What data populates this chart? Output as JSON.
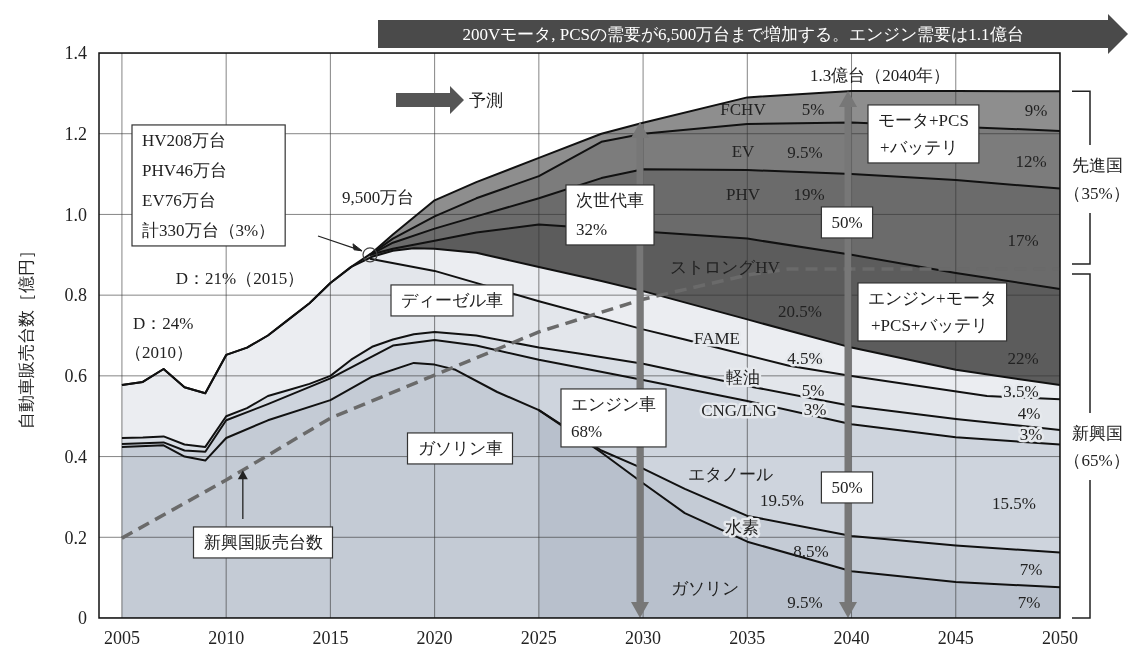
{
  "chart_data": {
    "type": "area",
    "ylabel": "自動車販売台数［億円］",
    "xlim": [
      2003.9,
      2050
    ],
    "xticks": [
      2005,
      2010,
      2015,
      2020,
      2025,
      2030,
      2035,
      2040,
      2045,
      2050
    ],
    "ylim": [
      0,
      1.4
    ],
    "yticks": [
      0,
      0.2,
      0.4,
      0.6,
      0.8,
      {
        "value": 1,
        "label": "1.0"
      },
      1.2,
      1.4
    ],
    "grid": true,
    "series": [
      {
        "color": "#8e8e8e",
        "x": [
          2005,
          2006,
          2007,
          2008,
          2009,
          2010,
          2011,
          2012,
          2013,
          2014,
          2015,
          2016,
          2017,
          2018,
          2020,
          2022,
          2025,
          2028,
          2030,
          2035,
          2040,
          2045,
          2050
        ],
        "values": [
          0.577,
          0.585,
          0.617,
          0.572,
          0.557,
          0.652,
          0.67,
          0.7,
          0.74,
          0.78,
          0.83,
          0.87,
          0.905,
          0.95,
          1.035,
          1.08,
          1.14,
          1.2,
          1.227,
          1.29,
          1.306,
          1.306,
          1.305
        ]
      },
      {
        "color": "#7c7c7c",
        "x": [
          2016.9,
          2018,
          2020,
          2022,
          2025,
          2028,
          2030,
          2035,
          2040,
          2045,
          2050
        ],
        "values": [
          0.9,
          0.94,
          0.995,
          1.04,
          1.095,
          1.18,
          1.2,
          1.224,
          1.228,
          null,
          1.207
        ]
      },
      {
        "color": "#6b6b6b",
        "x": [
          2016.9,
          2018,
          2020,
          2022,
          2025,
          2028,
          2030,
          2035,
          2040,
          2045,
          2050
        ],
        "values": [
          0.9,
          0.93,
          0.965,
          0.995,
          1.04,
          1.09,
          1.112,
          1.11,
          1.1,
          1.085,
          1.064
        ]
      },
      {
        "color": "#5c5c5c",
        "x": [
          2016.9,
          2018,
          2020,
          2022,
          2025,
          2028,
          2030,
          2035,
          2040,
          2045,
          2050
        ],
        "values": [
          0.9,
          0.915,
          0.935,
          0.955,
          0.975,
          null,
          null,
          0.94,
          0.9,
          0.855,
          0.815
        ]
      },
      {
        "color": "#ebedf1",
        "x": [
          2005,
          2006,
          2007,
          2008,
          2009,
          2010,
          2011,
          2012,
          2013,
          2014,
          2015,
          2016,
          2017,
          2018,
          2019,
          2020,
          2022,
          2025,
          2028,
          2030,
          2035,
          2040,
          2045,
          2050
        ],
        "values": [
          0.577,
          0.585,
          0.617,
          0.572,
          0.557,
          0.652,
          0.67,
          0.7,
          0.74,
          0.78,
          0.83,
          0.87,
          0.895,
          0.91,
          0.916,
          0.915,
          0.905,
          0.87,
          0.835,
          0.81,
          0.74,
          0.67,
          0.615,
          0.577
        ]
      },
      {
        "color": "#e3e6eb",
        "x": [
          2016.9,
          2020,
          2025,
          2030,
          2032,
          2037,
          2040,
          2046.5,
          2050
        ],
        "values": [
          0.89,
          0.86,
          0.785,
          0.715,
          0.69,
          0.625,
          0.6,
          0.55,
          0.542
        ]
      },
      {
        "color": "#d9dee5",
        "x": [
          2005,
          2006,
          2007,
          2008,
          2009,
          2010,
          2011,
          2012,
          2013,
          2014,
          2015,
          2016,
          2017,
          2018,
          2019,
          2020,
          2022,
          2025,
          2027,
          2030,
          2035,
          2040,
          2045,
          2050
        ],
        "values": [
          0.446,
          0.447,
          0.45,
          0.43,
          0.424,
          0.5,
          0.52,
          0.55,
          0.565,
          0.58,
          0.6,
          0.64,
          0.672,
          0.69,
          0.703,
          0.709,
          0.7,
          0.67,
          0.655,
          0.63,
          0.575,
          0.525,
          0.493,
          0.466
        ]
      },
      {
        "color": "#ced4dd",
        "x": [
          2005,
          2007,
          2008,
          2009,
          2010,
          2012,
          2015,
          2018,
          2020,
          2022,
          2025,
          2027,
          2030,
          2035,
          2040,
          2045,
          2050
        ],
        "values": [
          0.431,
          0.435,
          0.415,
          0.412,
          0.49,
          0.53,
          0.594,
          0.675,
          0.689,
          0.675,
          0.64,
          0.62,
          0.59,
          0.538,
          0.48,
          0.448,
          0.43
        ]
      },
      {
        "color": "#c4cbd5",
        "x": [
          2005,
          2007,
          2008,
          2009,
          2010,
          2012,
          2015,
          2017,
          2019,
          2020,
          2021,
          2023,
          2025,
          2027,
          2028,
          2030,
          2032,
          2035,
          2040,
          2045,
          2050
        ],
        "values": [
          0.424,
          0.428,
          0.4,
          0.39,
          0.446,
          0.49,
          0.54,
          0.598,
          0.632,
          0.628,
          0.615,
          0.56,
          0.515,
          null,
          0.415,
          0.37,
          0.32,
          0.253,
          0.203,
          0.18,
          0.162
        ]
      },
      {
        "color": "#b8c0cc",
        "x": [
          2025,
          2027,
          2028,
          2030,
          2032,
          2035,
          2040,
          2045,
          2050
        ],
        "values": [
          0.515,
          null,
          0.41,
          0.334,
          0.26,
          0.189,
          0.116,
          0.089,
          0.076
        ]
      },
      {
        "type": "line",
        "line_style": "dashed",
        "color": "#6a6a6a",
        "x": [
          2005,
          2010,
          2015,
          2020,
          2025,
          2030,
          2035,
          2037,
          2040,
          2050
        ],
        "values": [
          0.198,
          0.342,
          0.495,
          0.602,
          0.709,
          0.79,
          0.85,
          0.865,
          0.865,
          0.865
        ]
      }
    ],
    "annotations": [
      "200Vモータ, PCSの需要が6,500万台まで増加する。エンジン需要は1.1億台",
      "予測",
      "HV208万台",
      "PHV46万台",
      "EV76万台",
      "計330万台（3%）",
      "9,500万台",
      "D：21%（2015）",
      "D：24%",
      "（2010）",
      "ディーゼル車",
      "ガソリン車",
      {
        "text": "新興国販売台数",
        "x": 2010.8,
        "y": 0.366
      },
      "1.3億台（2040年）",
      "FCHV",
      "5%",
      "EV",
      "9.5%",
      "PHV",
      "19%",
      "ストロングHV",
      "20.5%",
      "9%",
      "12%",
      "17%",
      "次世代車",
      "32%",
      "モータ+PCS",
      "+バッテリ",
      "50%",
      "エンジン+モータ",
      "+PCS+バッテリ",
      "FAME",
      "4.5%",
      "軽油",
      "5%",
      "CNG/LNG",
      "3%",
      "22%",
      "3.5%",
      "4%",
      "3%",
      "エンジン車",
      "68%",
      "エタノール",
      "19.5%",
      "50%",
      "15.5%",
      "水素",
      "8.5%",
      "7%",
      "ガソリン",
      "9.5%",
      "7%",
      "先進国",
      "（35%）",
      "新興国",
      "（65%）"
    ]
  }
}
